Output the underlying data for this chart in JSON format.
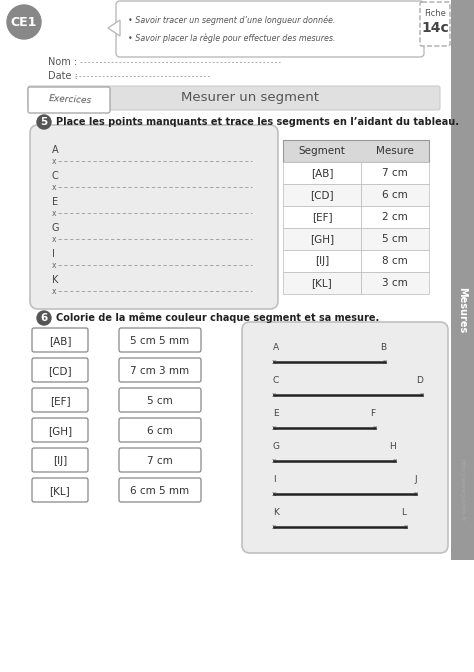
{
  "title": "Mesurer un segment",
  "ce1_label": "CE1",
  "fiche_num": "14c",
  "fiche_top": "Fiche",
  "objectives": [
    "Savoir tracer un segment d’une longueur donnée.",
    "Savoir placer la règle pour effectuer des mesures."
  ],
  "nom_label": "Nom : ",
  "date_label": "Date : ",
  "exercices_label": "Exercices",
  "mesures_label": "Mesures",
  "q5_num": "5",
  "q5_text": "Place les points manquants et trace les segments en l’aidant du tableau.",
  "segment_labels_left": [
    "A",
    "C",
    "E",
    "G",
    "I",
    "K"
  ],
  "table_header": [
    "Segment",
    "Mesure"
  ],
  "table_data": [
    [
      "[AB]",
      "7 cm"
    ],
    [
      "[CD]",
      "6 cm"
    ],
    [
      "[EF]",
      "2 cm"
    ],
    [
      "[GH]",
      "5 cm"
    ],
    [
      "[IJ]",
      "8 cm"
    ],
    [
      "[KL]",
      "3 cm"
    ]
  ],
  "q6_num": "6",
  "q6_text": "Colorie de la même couleur chaque segment et sa mesure.",
  "col1_labels": [
    "[AB]",
    "[CD]",
    "[EF]",
    "[GH]",
    "[IJ]",
    "[KL]"
  ],
  "col2_labels": [
    "5 cm 5 mm",
    "7 cm 3 mm",
    "5 cm",
    "6 cm",
    "7 cm",
    "6 cm 5 mm"
  ],
  "seg_points_left": [
    "A",
    "C",
    "E",
    "G",
    "I",
    "K"
  ],
  "seg_points_right": [
    "B",
    "D",
    "F",
    "H",
    "J",
    "L"
  ],
  "seg_lengths_mm": [
    55,
    73,
    50,
    60,
    70,
    65
  ],
  "watermark": "http://www.j-profs.fr",
  "bg_color": "#ffffff",
  "gray_box_bg": "#e8e8e8",
  "banner_bg": "#e0e0e0",
  "table_header_bg": "#d8d8d8",
  "sidebar_bg": "#999999",
  "ce1_bg": "#888888"
}
